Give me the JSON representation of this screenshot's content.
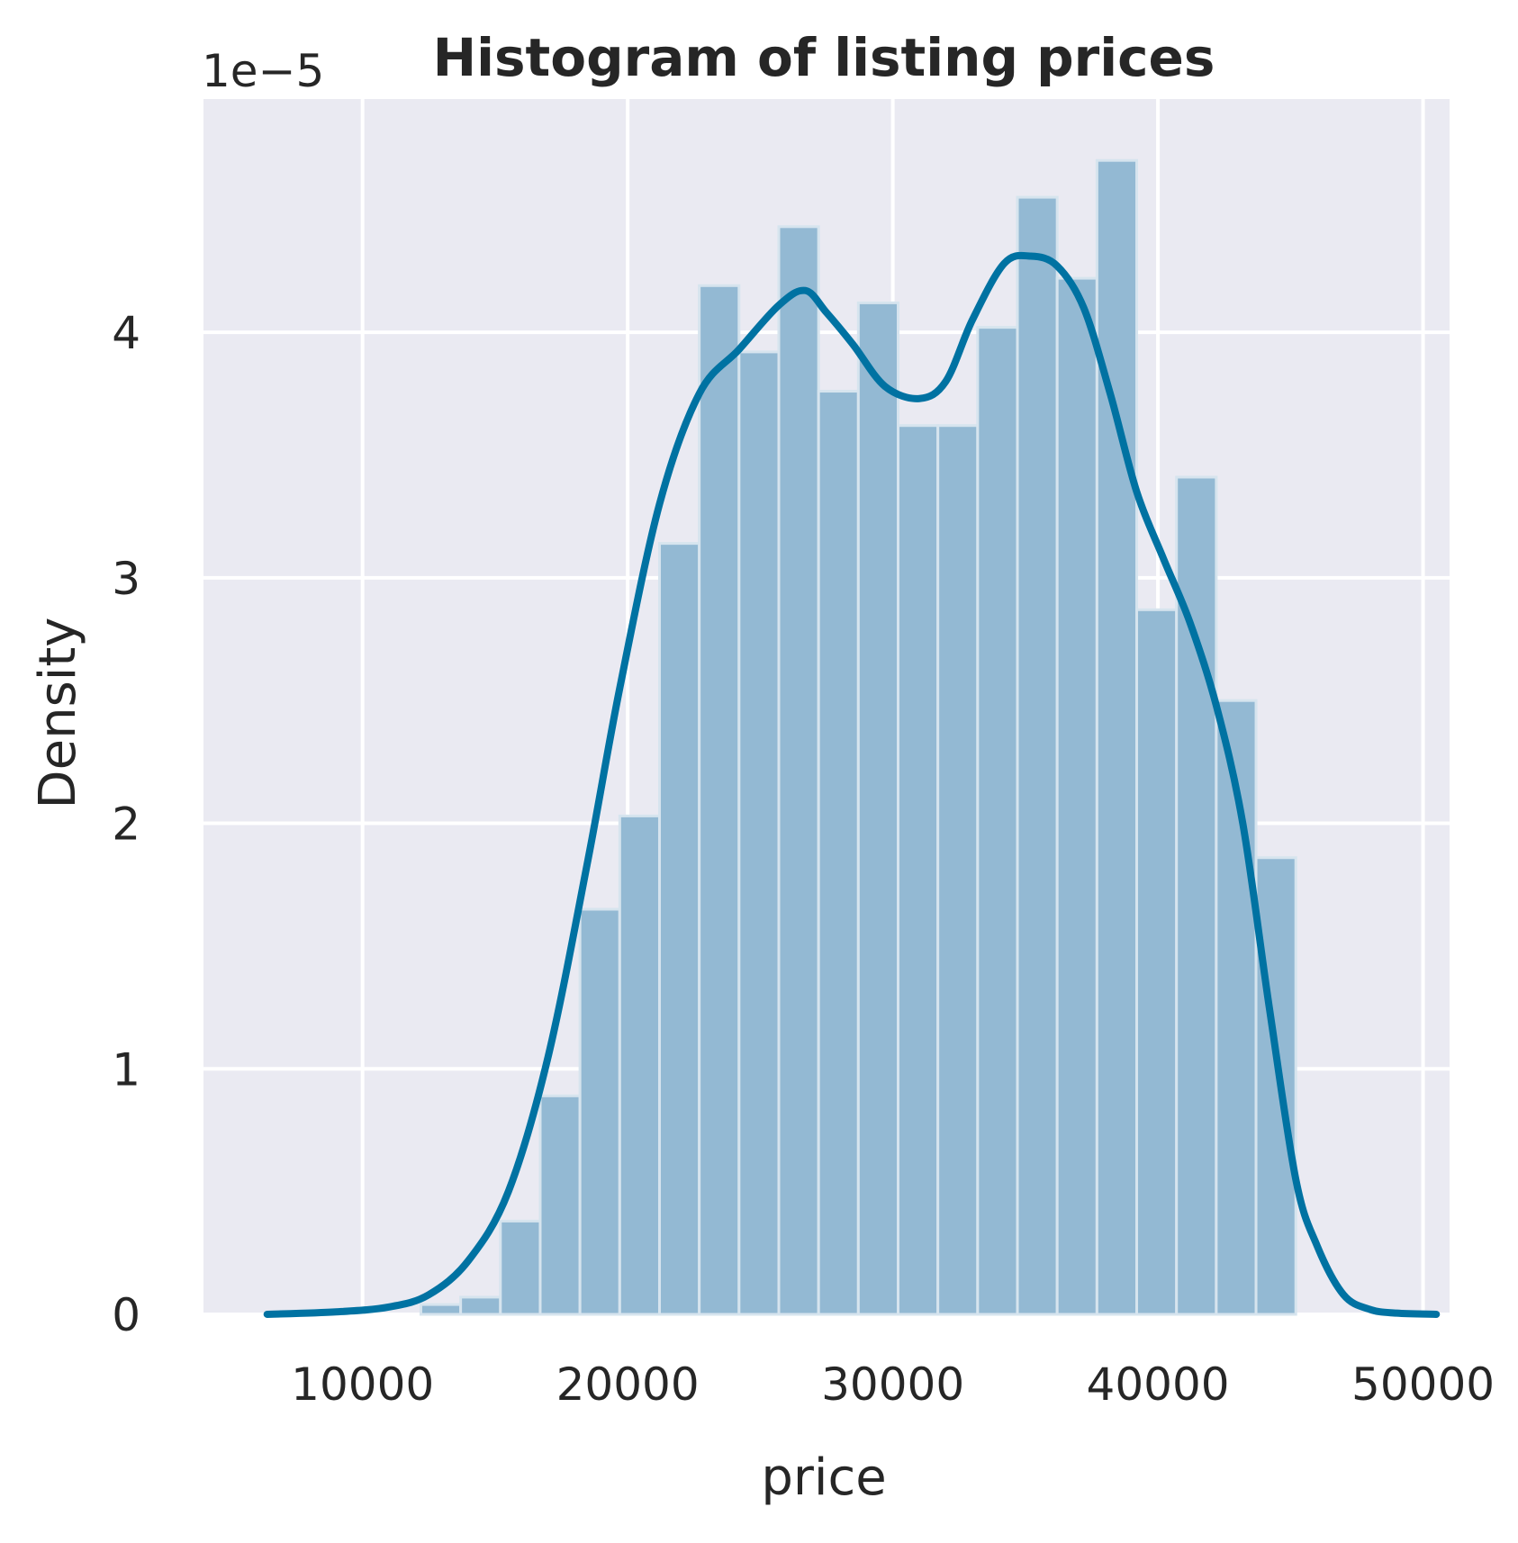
{
  "chart_data": {
    "type": "bar",
    "title": "Histogram of listing prices",
    "xlabel": "price",
    "ylabel": "Density",
    "y_offset_label": "1e−5",
    "y_scale": 1e-05,
    "xlim": [
      4000,
      51000
    ],
    "ylim": [
      0,
      4.95
    ],
    "x_ticks": [
      10000,
      20000,
      30000,
      40000,
      50000
    ],
    "x_tick_labels": [
      "10000",
      "20000",
      "30000",
      "40000",
      "50000"
    ],
    "y_ticks": [
      0,
      1,
      2,
      3,
      4
    ],
    "y_tick_labels": [
      "0",
      "1",
      "2",
      "3",
      "4"
    ],
    "grid": true,
    "colors": {
      "background": "#eaeaf2",
      "grid": "#ffffff",
      "bar": "#93b9d3",
      "kde": "#0072a2"
    },
    "bins": {
      "edges": [
        12200,
        13700,
        15200,
        16700,
        18200,
        19700,
        21200,
        22700,
        24200,
        25700,
        27200,
        28700,
        30200,
        31700,
        33200,
        34700,
        36200,
        37700,
        39200,
        40700,
        42200,
        43700,
        45200
      ],
      "values": [
        0.04,
        0.07,
        0.38,
        0.89,
        1.65,
        2.03,
        3.14,
        4.19,
        3.92,
        4.43,
        3.76,
        4.12,
        3.62,
        3.62,
        4.02,
        4.55,
        4.22,
        4.7,
        2.87,
        3.41,
        2.5,
        1.86
      ]
    },
    "kde": {
      "name": "",
      "x": [
        6400,
        9000,
        11000,
        12500,
        14000,
        15500,
        17000,
        18500,
        19700,
        21200,
        22700,
        24200,
        25700,
        26700,
        27500,
        28500,
        29700,
        31000,
        32000,
        33000,
        34200,
        35200,
        36200,
        37200,
        38200,
        39200,
        40200,
        41200,
        42200,
        43200,
        44200,
        45200,
        46000,
        47000,
        48000,
        49000,
        50500
      ],
      "y": [
        0.0,
        0.01,
        0.03,
        0.08,
        0.22,
        0.5,
        1.05,
        1.85,
        2.55,
        3.3,
        3.75,
        3.93,
        4.11,
        4.17,
        4.08,
        3.95,
        3.78,
        3.73,
        3.8,
        4.05,
        4.28,
        4.31,
        4.27,
        4.1,
        3.75,
        3.35,
        3.08,
        2.82,
        2.48,
        2.0,
        1.25,
        0.55,
        0.28,
        0.08,
        0.02,
        0.005,
        0.0
      ]
    }
  }
}
